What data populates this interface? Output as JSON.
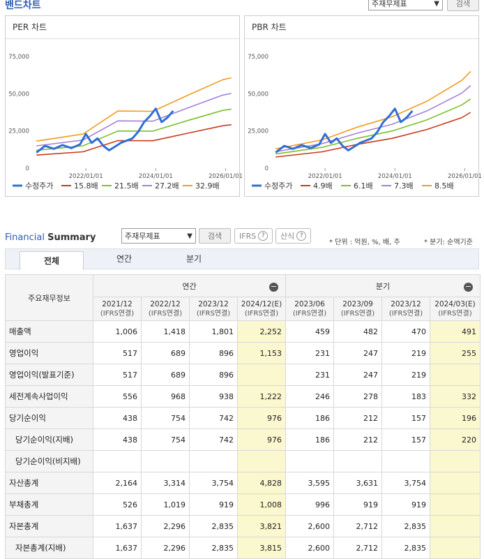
{
  "band": {
    "title": "밴드차트",
    "select_value": "주재무제표",
    "search_label": "검색"
  },
  "per_chart": {
    "header": "PER 차트",
    "legend": [
      "수정주가",
      "15.8배",
      "21.5배",
      "27.2배",
      "32.9배"
    ]
  },
  "pbr_chart": {
    "header": "PBR 차트",
    "legend": [
      "수정주가",
      "4.9배",
      "6.1배",
      "7.3배",
      "8.5배"
    ]
  },
  "chart_data": [
    {
      "type": "line",
      "title": "PER 차트",
      "x_tick_labels": [
        "2022/01/01",
        "2024/01/01",
        "2026/01/01"
      ],
      "y_tick_labels": [
        "0",
        "25,000",
        "50,000",
        "75,000"
      ],
      "ylim": [
        0,
        75000
      ],
      "xlim": [
        "2020/07/01",
        "2026/04/01"
      ],
      "legend_position": "bottom",
      "colors": [
        "#2f6fd6",
        "#c8391a",
        "#7bbf2a",
        "#a57fd8",
        "#f29a1f"
      ],
      "series": [
        {
          "name": "수정주가",
          "x": [
            "2020/08",
            "2020/11",
            "2021/02",
            "2021/05",
            "2021/08",
            "2021/11",
            "2022/01",
            "2022/03",
            "2022/05",
            "2022/07",
            "2022/09",
            "2022/11",
            "2023/01",
            "2023/03",
            "2023/05",
            "2023/07",
            "2023/09",
            "2023/11",
            "2024/01",
            "2024/03",
            "2024/05",
            "2024/07"
          ],
          "values": [
            10500,
            15000,
            13000,
            15500,
            13500,
            16000,
            23000,
            17000,
            20000,
            15000,
            12000,
            14500,
            17000,
            18500,
            20000,
            24500,
            31000,
            35000,
            40000,
            31000,
            34000,
            38500
          ]
        },
        {
          "name": "15.8배",
          "x": [
            "2020/08",
            "2021/12",
            "2022/12",
            "2023/12",
            "2024/12",
            "2025/12",
            "2026/03"
          ],
          "values": [
            8800,
            11000,
            18500,
            18400,
            23500,
            28500,
            29200
          ]
        },
        {
          "name": "21.5배",
          "x": [
            "2020/08",
            "2021/12",
            "2022/12",
            "2023/12",
            "2024/12",
            "2025/12",
            "2026/03"
          ],
          "values": [
            12000,
            15000,
            25000,
            24900,
            32000,
            38800,
            39700
          ]
        },
        {
          "name": "27.2배",
          "x": [
            "2020/08",
            "2021/12",
            "2022/12",
            "2023/12",
            "2024/12",
            "2025/12",
            "2026/03"
          ],
          "values": [
            15000,
            18900,
            31800,
            31600,
            40500,
            49100,
            50200
          ]
        },
        {
          "name": "32.9배",
          "x": [
            "2020/08",
            "2021/12",
            "2022/12",
            "2023/12",
            "2024/12",
            "2025/12",
            "2026/03"
          ],
          "values": [
            18200,
            22900,
            38400,
            38200,
            49000,
            59400,
            60700
          ]
        }
      ]
    },
    {
      "type": "line",
      "title": "PBR 차트",
      "x_tick_labels": [
        "2022/01/01",
        "2024/01/01",
        "2026/01/01"
      ],
      "y_tick_labels": [
        "0",
        "25,000",
        "50,000",
        "75,000"
      ],
      "ylim": [
        0,
        75000
      ],
      "xlim": [
        "2020/07/01",
        "2026/04/01"
      ],
      "legend_position": "bottom",
      "colors": [
        "#2f6fd6",
        "#c8391a",
        "#7bbf2a",
        "#a57fd8",
        "#f29a1f"
      ],
      "series": [
        {
          "name": "수정주가",
          "x": [
            "2020/08",
            "2020/11",
            "2021/02",
            "2021/05",
            "2021/08",
            "2021/11",
            "2022/01",
            "2022/03",
            "2022/05",
            "2022/07",
            "2022/09",
            "2022/11",
            "2023/01",
            "2023/03",
            "2023/05",
            "2023/07",
            "2023/09",
            "2023/11",
            "2024/01",
            "2024/03",
            "2024/05",
            "2024/07"
          ],
          "values": [
            10500,
            15000,
            13000,
            15500,
            13500,
            16000,
            23000,
            17000,
            20000,
            15000,
            12000,
            14500,
            17000,
            18500,
            20000,
            24500,
            31000,
            35000,
            40000,
            31000,
            34000,
            38500
          ]
        },
        {
          "name": "4.9배",
          "x": [
            "2020/08",
            "2021/12",
            "2022/12",
            "2023/12",
            "2024/12",
            "2025/12",
            "2026/03"
          ],
          "values": [
            7500,
            11000,
            16000,
            20000,
            26000,
            34000,
            37500
          ]
        },
        {
          "name": "6.1배",
          "x": [
            "2020/08",
            "2021/12",
            "2022/12",
            "2023/12",
            "2024/12",
            "2025/12",
            "2026/03"
          ],
          "values": [
            9500,
            14000,
            20000,
            25000,
            32500,
            42500,
            46500
          ]
        },
        {
          "name": "7.3배",
          "x": [
            "2020/08",
            "2021/12",
            "2022/12",
            "2023/12",
            "2024/12",
            "2025/12",
            "2026/03"
          ],
          "values": [
            11000,
            16500,
            23500,
            29500,
            38500,
            50500,
            55500
          ]
        },
        {
          "name": "8.5배",
          "x": [
            "2020/08",
            "2021/12",
            "2022/12",
            "2023/12",
            "2024/12",
            "2025/12",
            "2026/03"
          ],
          "values": [
            13000,
            19000,
            27500,
            34500,
            45000,
            59000,
            65000
          ]
        }
      ]
    }
  ],
  "fs": {
    "title_a": "Financial",
    "title_b": "Summary",
    "select_value": "주재무제표",
    "search_label": "검색",
    "ifrs_label": "IFRS",
    "formula_label": "산식",
    "unit_note": "* 단위 : 억원, %, 배, 주",
    "period_note": "* 분기: 순액기준",
    "tabs": [
      "전체",
      "연간",
      "분기"
    ],
    "row_header": "주요재무정보",
    "group_annual": "연간",
    "group_quarter": "분기",
    "columns": [
      {
        "period": "2021/12",
        "basis": "(IFRS연결)"
      },
      {
        "period": "2022/12",
        "basis": "(IFRS연결)"
      },
      {
        "period": "2023/12",
        "basis": "(IFRS연결)"
      },
      {
        "period": "2024/12(E)",
        "basis": "(IFRS연결)"
      },
      {
        "period": "2023/06",
        "basis": "(IFRS연결)"
      },
      {
        "period": "2023/09",
        "basis": "(IFRS연결)"
      },
      {
        "period": "2023/12",
        "basis": "(IFRS연결)"
      },
      {
        "period": "2024/03(E)",
        "basis": "(IFRS연결)"
      }
    ],
    "rows": [
      {
        "label": "매출액",
        "values": [
          "1,006",
          "1,418",
          "1,801",
          "2,252",
          "459",
          "482",
          "470",
          "491"
        ]
      },
      {
        "label": "영업이익",
        "values": [
          "517",
          "689",
          "896",
          "1,153",
          "231",
          "247",
          "219",
          "255"
        ]
      },
      {
        "label": "영업이익(발표기준)",
        "values": [
          "517",
          "689",
          "896",
          "",
          "231",
          "247",
          "219",
          ""
        ]
      },
      {
        "label": "세전계속사업이익",
        "values": [
          "556",
          "968",
          "938",
          "1,222",
          "246",
          "278",
          "183",
          "332"
        ]
      },
      {
        "label": "당기순이익",
        "values": [
          "438",
          "754",
          "742",
          "976",
          "186",
          "212",
          "157",
          "196"
        ]
      },
      {
        "label": "당기순이익(지배)",
        "values": [
          "438",
          "754",
          "742",
          "976",
          "186",
          "212",
          "157",
          "220"
        ],
        "sub": true
      },
      {
        "label": "당기순이익(비지배)",
        "values": [
          "",
          "",
          "",
          "",
          "",
          "",
          "",
          ""
        ],
        "sub": true
      },
      {
        "label": "자산총계",
        "values": [
          "2,164",
          "3,314",
          "3,754",
          "4,828",
          "3,595",
          "3,631",
          "3,754",
          ""
        ]
      },
      {
        "label": "부채총계",
        "values": [
          "526",
          "1,019",
          "919",
          "1,008",
          "996",
          "919",
          "919",
          ""
        ]
      },
      {
        "label": "자본총계",
        "values": [
          "1,637",
          "2,296",
          "2,835",
          "3,821",
          "2,600",
          "2,712",
          "2,835",
          ""
        ]
      },
      {
        "label": "자본총계(지배)",
        "values": [
          "1,637",
          "2,296",
          "2,835",
          "3,815",
          "2,600",
          "2,712",
          "2,835",
          ""
        ],
        "sub": true
      }
    ]
  }
}
